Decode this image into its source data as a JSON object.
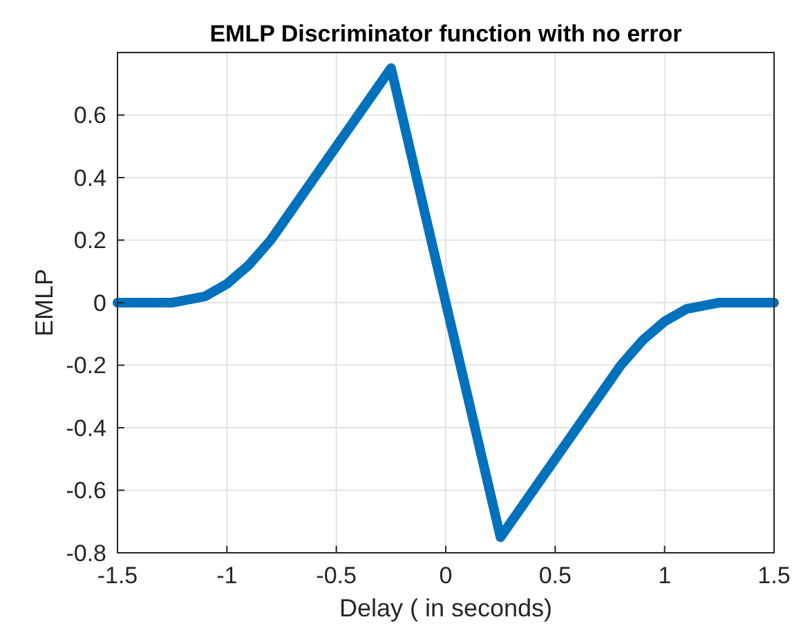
{
  "chart_data": {
    "type": "line",
    "title": "EMLP Discriminator function with no error",
    "xlabel": "Delay ( in seconds)",
    "ylabel": "EMLP",
    "x": [
      -1.5,
      -1.25,
      -1.1,
      -1.05,
      -1,
      -0.95,
      -0.9,
      -0.85,
      -0.8,
      -0.75,
      -0.25,
      0.25,
      0.75,
      0.8,
      0.85,
      0.9,
      0.95,
      1,
      1.05,
      1.1,
      1.25,
      1.5
    ],
    "series": [
      {
        "color": "#0072bd",
        "values": [
          0,
          0,
          0.02,
          0.04,
          0.06,
          0.09,
          0.12,
          0.16,
          0.2,
          0.25,
          0.75,
          -0.75,
          -0.25,
          -0.2,
          -0.16,
          -0.12,
          -0.09,
          -0.06,
          -0.04,
          -0.02,
          0,
          0
        ]
      }
    ],
    "xlim": [
      -1.5,
      1.5
    ],
    "xticks": [
      -1.5,
      -1,
      -0.5,
      0,
      0.5,
      1,
      1.5
    ],
    "ylim": [
      -0.8,
      0.8
    ],
    "yticks": [
      -0.8,
      -0.6,
      -0.4,
      -0.2,
      0,
      0.2,
      0.4,
      0.6
    ],
    "grid": true,
    "line_style": "solid",
    "marker": "none"
  }
}
